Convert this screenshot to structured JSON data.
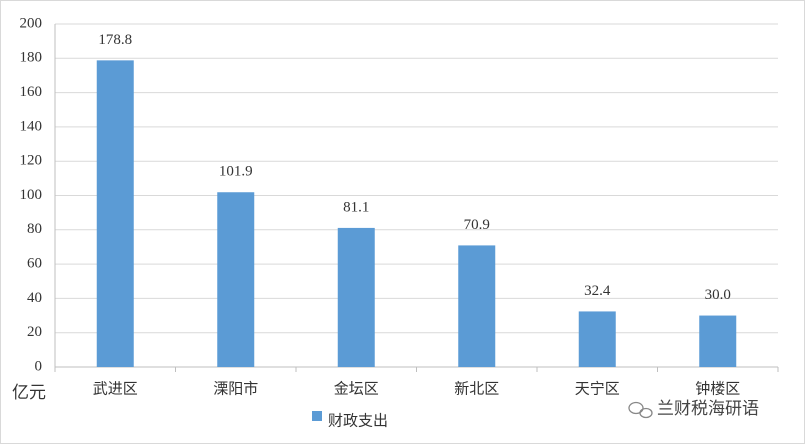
{
  "chart_data": {
    "type": "bar",
    "y_unit_label": "亿元",
    "categories": [
      "武进区",
      "溧阳市",
      "金坛区",
      "新北区",
      "天宁区",
      "钟楼区"
    ],
    "series": [
      {
        "name": "财政支出",
        "color": "#5b9bd5",
        "values": [
          178.8,
          101.9,
          81.1,
          70.9,
          32.4,
          30.0
        ],
        "value_labels": [
          "178.8",
          "101.9",
          "81.1",
          "70.9",
          "32.4",
          "30.0"
        ]
      }
    ],
    "ylim": [
      0,
      200
    ],
    "yticks": [
      0,
      20,
      40,
      60,
      80,
      100,
      120,
      140,
      160,
      180,
      200
    ],
    "grid": true,
    "watermark": "兰财税海研语"
  }
}
